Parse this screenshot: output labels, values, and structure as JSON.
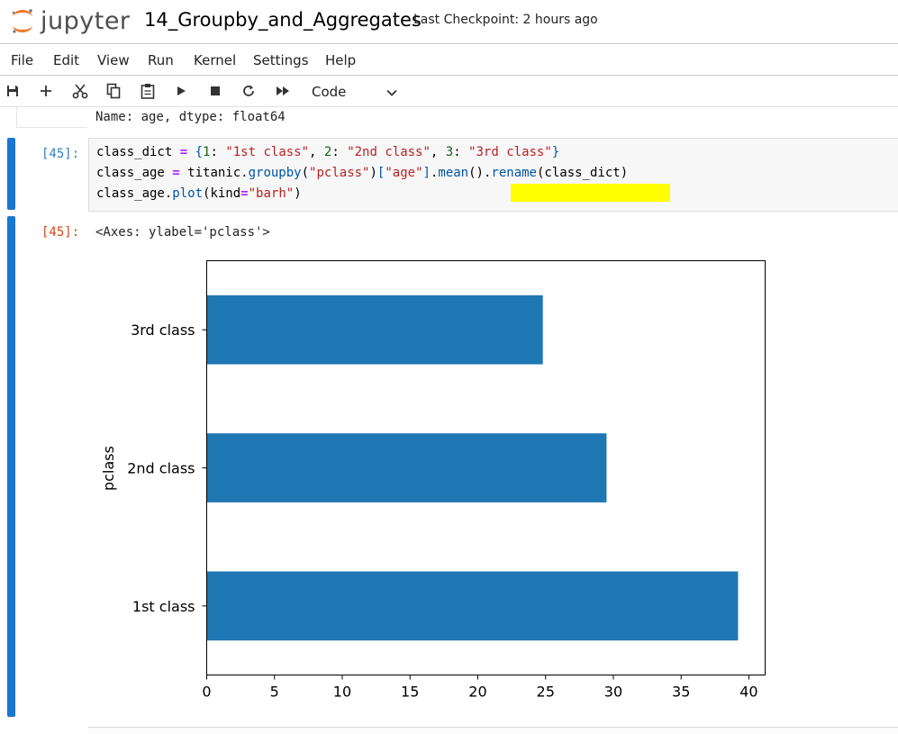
{
  "header": {
    "logo_text": "jupyter",
    "notebook_title": "14_Groupby_and_Aggregates",
    "checkpoint": "Last Checkpoint: 2 hours ago"
  },
  "menu": [
    "File",
    "Edit",
    "View",
    "Run",
    "Kernel",
    "Settings",
    "Help"
  ],
  "toolbar": {
    "icons": [
      "save-icon",
      "add-cell-icon",
      "cut-icon",
      "copy-icon",
      "paste-icon",
      "run-icon",
      "stop-icon",
      "restart-icon",
      "fast-forward-icon"
    ],
    "cell_type": "Code"
  },
  "prev_output": "Name: age, dtype: float64",
  "cell": {
    "in_prompt": "[45]:",
    "out_prompt": "[45]:",
    "output_text": "<Axes: ylabel='pclass'>",
    "code_lines": [
      [
        [
          "t",
          "class_dict "
        ],
        [
          "op",
          "="
        ],
        [
          "t",
          " "
        ],
        [
          "br",
          "{"
        ],
        [
          "num",
          "1"
        ],
        [
          "t",
          ": "
        ],
        [
          "str",
          "\"1st class\""
        ],
        [
          "t",
          ", "
        ],
        [
          "num",
          "2"
        ],
        [
          "t",
          ": "
        ],
        [
          "str",
          "\"2nd class\""
        ],
        [
          "t",
          ", "
        ],
        [
          "num",
          "3"
        ],
        [
          "t",
          ": "
        ],
        [
          "str",
          "\"3rd class\""
        ],
        [
          "br",
          "}"
        ]
      ],
      [
        [
          "t",
          "class_age "
        ],
        [
          "op",
          "="
        ],
        [
          "t",
          " titanic."
        ],
        [
          "fn",
          "groupby"
        ],
        [
          "t",
          "("
        ],
        [
          "str",
          "\"pclass\""
        ],
        [
          "t",
          ")"
        ],
        [
          "br",
          "["
        ],
        [
          "str",
          "\"age\""
        ],
        [
          "br",
          "]"
        ],
        [
          "t",
          "."
        ],
        [
          "fn",
          "mean"
        ],
        [
          "t",
          "()."
        ],
        [
          "fn",
          "rename"
        ],
        [
          "t",
          "(class_dict)"
        ]
      ],
      [
        [
          "t",
          "class_age."
        ],
        [
          "fn",
          "plot"
        ],
        [
          "t",
          "(kind"
        ],
        [
          "op",
          "="
        ],
        [
          "str",
          "\"barh\""
        ],
        [
          "t",
          ")"
        ]
      ]
    ],
    "highlight_color": "#ffff00"
  },
  "colors": {
    "accent": "#1976d2",
    "bar": "#1f77b4",
    "in_prompt": "#307fc1",
    "out_prompt": "#d84315"
  },
  "chart_data": {
    "type": "bar",
    "orientation": "horizontal",
    "categories": [
      "1st class",
      "2nd class",
      "3rd class"
    ],
    "values": [
      39.2,
      29.5,
      24.8
    ],
    "ylabel": "pclass",
    "xlabel": "",
    "xlim": [
      0,
      41.2
    ],
    "xticks": [
      0,
      5,
      10,
      15,
      20,
      25,
      30,
      35,
      40
    ],
    "grid": false,
    "color": "#1f77b4"
  }
}
